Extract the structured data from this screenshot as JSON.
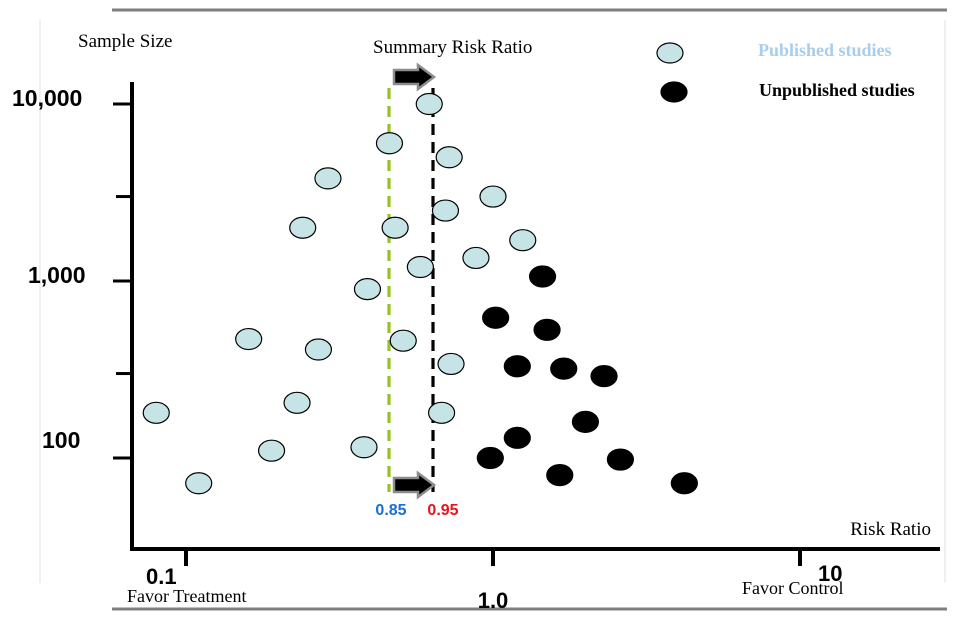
{
  "chart_data": {
    "type": "scatter",
    "title": "",
    "xlabel": "Risk Ratio",
    "ylabel": "Sample Size",
    "x_scale": "log",
    "y_scale": "log",
    "x_ticks": [
      {
        "value": 0.1,
        "label": "0.1"
      },
      {
        "value": 1.0,
        "label": "1.0"
      },
      {
        "value": 10,
        "label": "10"
      }
    ],
    "y_ticks": [
      {
        "value": 100,
        "label": "100"
      },
      {
        "value": 1000,
        "label": "1,000"
      },
      {
        "value": 10000,
        "label": "10,000"
      }
    ],
    "y_minor_ticks": [
      300,
      3000
    ],
    "legend_position": "top-right",
    "series": [
      {
        "name": "Published studies",
        "color": "#c6e4e6",
        "label_color": "#a9cdec",
        "points": [
          {
            "x": 0.62,
            "y": 10000
          },
          {
            "x": 0.46,
            "y": 6000
          },
          {
            "x": 0.72,
            "y": 5000
          },
          {
            "x": 0.29,
            "y": 3800
          },
          {
            "x": 1.0,
            "y": 3000
          },
          {
            "x": 0.7,
            "y": 2500
          },
          {
            "x": 0.24,
            "y": 2000
          },
          {
            "x": 0.48,
            "y": 2000
          },
          {
            "x": 1.25,
            "y": 1700
          },
          {
            "x": 0.88,
            "y": 1350
          },
          {
            "x": 0.58,
            "y": 1200
          },
          {
            "x": 0.39,
            "y": 900
          },
          {
            "x": 0.16,
            "y": 470
          },
          {
            "x": 0.51,
            "y": 460
          },
          {
            "x": 0.27,
            "y": 410
          },
          {
            "x": 0.73,
            "y": 340
          },
          {
            "x": 0.23,
            "y": 205
          },
          {
            "x": 0.08,
            "y": 180
          },
          {
            "x": 0.68,
            "y": 180
          },
          {
            "x": 0.38,
            "y": 115
          },
          {
            "x": 0.19,
            "y": 110
          },
          {
            "x": 0.11,
            "y": 72
          }
        ]
      },
      {
        "name": "Unpublished studies",
        "color": "#000000",
        "label_color": "#000000",
        "points": [
          {
            "x": 1.45,
            "y": 1060
          },
          {
            "x": 1.02,
            "y": 620
          },
          {
            "x": 1.5,
            "y": 530
          },
          {
            "x": 1.2,
            "y": 330
          },
          {
            "x": 1.7,
            "y": 320
          },
          {
            "x": 2.3,
            "y": 290
          },
          {
            "x": 2.0,
            "y": 160
          },
          {
            "x": 1.2,
            "y": 130
          },
          {
            "x": 0.98,
            "y": 100
          },
          {
            "x": 2.6,
            "y": 98
          },
          {
            "x": 1.65,
            "y": 80
          },
          {
            "x": 4.2,
            "y": 72
          }
        ]
      }
    ],
    "reference_lines": [
      {
        "value": 0.85,
        "label": "0.85",
        "color": "#97c21f",
        "label_color": "#1a6ed8"
      },
      {
        "value": 0.95,
        "label": "0.95",
        "color": "#000000",
        "label_color": "#e8141b"
      }
    ],
    "annotations": {
      "summary_label": "Summary  Risk  Ratio",
      "favor_treatment": "Favor Treatment",
      "favor_control": "Favor Control"
    }
  }
}
